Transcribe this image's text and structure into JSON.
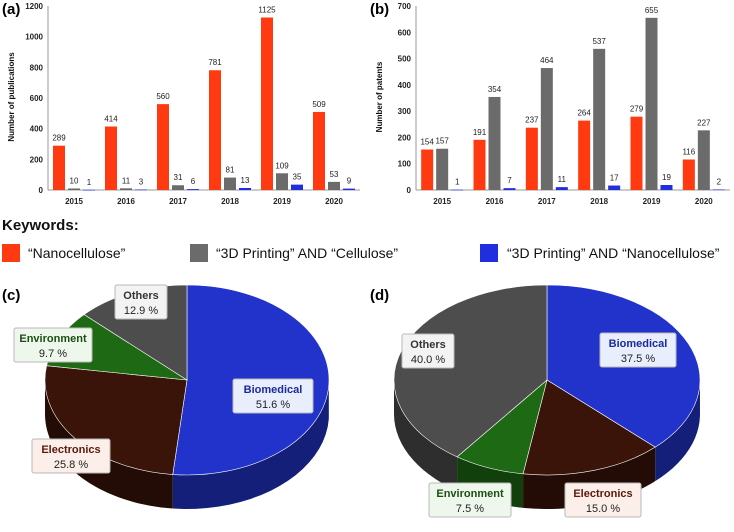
{
  "colors": {
    "nanocellulose": "#ff3a10",
    "printing_cellulose": "#6b6b6b",
    "printing_nanocellulose": "#1f2fe0",
    "biomedical": "#2233cc",
    "electronics": "#3a1408",
    "environment": "#1e6a14",
    "others": "#4d4d4d",
    "label_box_biomedical": "#e8eefc",
    "label_box_electronics": "#fcefe9",
    "label_box_environment": "#eef7ec",
    "label_box_others": "#f3f3f3"
  },
  "chart_data": [
    {
      "id": "a",
      "panel_label": "(a)",
      "type": "bar",
      "ylabel": "Number of publications",
      "ylim": [
        0,
        1200
      ],
      "yticks": [
        "0",
        "200",
        "400",
        "600",
        "800",
        "1000",
        "1200"
      ],
      "categories": [
        "2015",
        "2016",
        "2017",
        "2018",
        "2019",
        "2020"
      ],
      "series": [
        {
          "name": "“Nanocellulose”",
          "values": [
            289,
            414,
            560,
            781,
            1125,
            509
          ],
          "labels": [
            "289",
            "414",
            "560",
            "781",
            "1125",
            "509"
          ]
        },
        {
          "name": "“3D Printing” AND “Cellulose”",
          "values": [
            10,
            11,
            31,
            81,
            109,
            53
          ],
          "labels": [
            "10",
            "11",
            "31",
            "81",
            "109",
            "53"
          ]
        },
        {
          "name": "“3D Printing” AND “Nanocellulose”",
          "values": [
            1,
            3,
            6,
            13,
            35,
            9
          ],
          "labels": [
            "1",
            "3",
            "6",
            "13",
            "35",
            "9"
          ]
        }
      ]
    },
    {
      "id": "b",
      "panel_label": "(b)",
      "type": "bar",
      "ylabel": "Number of patents",
      "ylim": [
        0,
        700
      ],
      "yticks": [
        "0",
        "100",
        "200",
        "300",
        "400",
        "500",
        "600",
        "700"
      ],
      "categories": [
        "2015",
        "2016",
        "2017",
        "2018",
        "2019",
        "2020"
      ],
      "series": [
        {
          "name": "“Nanocellulose”",
          "values": [
            154,
            191,
            237,
            264,
            279,
            116
          ],
          "labels": [
            "154",
            "191",
            "237",
            "264",
            "279",
            "116"
          ]
        },
        {
          "name": "“3D Printing” AND “Cellulose”",
          "values": [
            157,
            354,
            464,
            537,
            655,
            227
          ],
          "labels": [
            "157",
            "354",
            "464",
            "537",
            "655",
            "227"
          ]
        },
        {
          "name": "“3D Printing” AND “Nanocellulose”",
          "values": [
            1,
            7,
            11,
            17,
            19,
            2
          ],
          "labels": [
            "1",
            "7",
            "11",
            "17",
            "19",
            "2"
          ]
        }
      ]
    },
    {
      "id": "c",
      "panel_label": "(c)",
      "type": "pie",
      "slices": [
        {
          "name": "Biomedical",
          "value": 51.6,
          "label": "51.6 %"
        },
        {
          "name": "Electronics",
          "value": 25.8,
          "label": "25.8 %"
        },
        {
          "name": "Environment",
          "value": 9.7,
          "label": "9.7 %"
        },
        {
          "name": "Others",
          "value": 12.9,
          "label": "12.9 %"
        }
      ]
    },
    {
      "id": "d",
      "panel_label": "(d)",
      "type": "pie",
      "slices": [
        {
          "name": "Biomedical",
          "value": 37.5,
          "label": "37.5 %"
        },
        {
          "name": "Electronics",
          "value": 15.0,
          "label": "15.0 %"
        },
        {
          "name": "Environment",
          "value": 7.5,
          "label": "7.5 %"
        },
        {
          "name": "Others",
          "value": 40.0,
          "label": "40.0 %"
        }
      ]
    }
  ],
  "legend": {
    "title": "Keywords:",
    "items": [
      {
        "label": "“Nanocellulose”"
      },
      {
        "label": "“3D Printing” AND “Cellulose”"
      },
      {
        "label": "“3D Printing” AND “Nanocellulose”"
      }
    ]
  }
}
